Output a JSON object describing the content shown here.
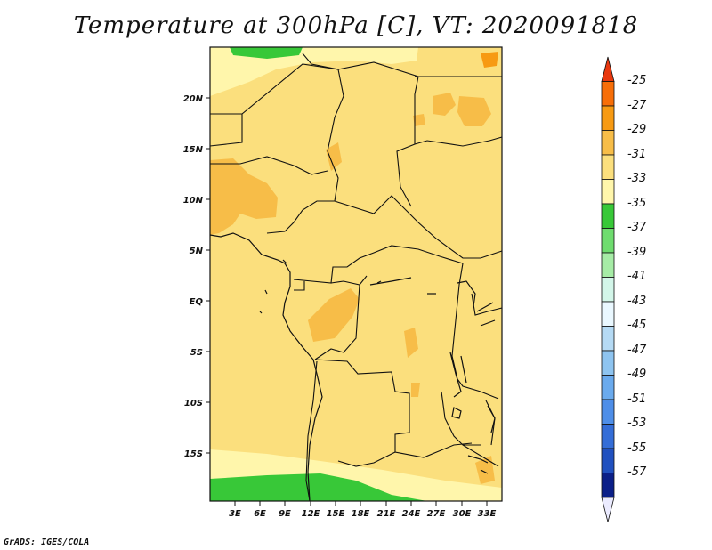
{
  "title": "Temperature at 300hPa [C], VT: 2020091818",
  "credit": "GrADS: IGES/COLA",
  "map": {
    "lat_labels": [
      "20N",
      "15N",
      "10N",
      "5N",
      "EQ",
      "5S",
      "10S",
      "15S"
    ],
    "lon_labels": [
      "3E",
      "6E",
      "9E",
      "12E",
      "15E",
      "18E",
      "21E",
      "24E",
      "27E",
      "30E",
      "33E"
    ]
  },
  "colorbar": {
    "labels": [
      "-25",
      "-27",
      "-29",
      "-31",
      "-33",
      "-35",
      "-37",
      "-39",
      "-41",
      "-43",
      "-45",
      "-47",
      "-49",
      "-51",
      "-53",
      "-55",
      "-57"
    ],
    "colors": [
      "#e8380f",
      "#f76e08",
      "#f79a13",
      "#f7bd48",
      "#fbdf7d",
      "#fff6ab",
      "#38c838",
      "#6fdc6f",
      "#a6eca6",
      "#d3f6e9",
      "#eaf8ff",
      "#b5daf4",
      "#8ec4f0",
      "#6aaaed",
      "#4e8ee8",
      "#346dd7",
      "#2050bf",
      "#0b1f88",
      "#ebebff"
    ]
  },
  "field_colors": {
    "base": "#fbdf7d",
    "warm": "#f7bd48",
    "cool": "#fff6ab",
    "green": "#38c838"
  }
}
